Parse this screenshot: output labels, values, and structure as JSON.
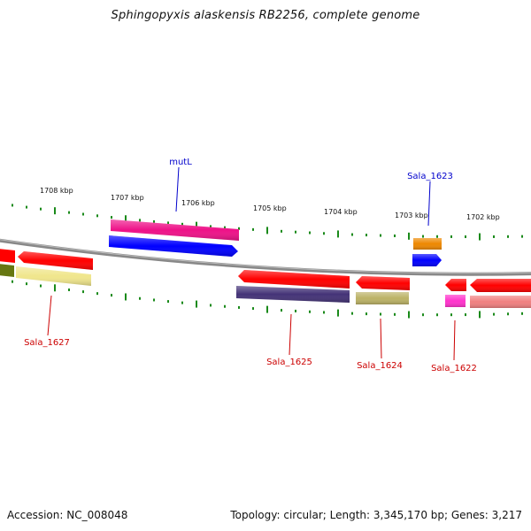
{
  "title": "Sphingopyxis alaskensis RB2256, complete genome",
  "footer": {
    "accession": "Accession: NC_008048",
    "stats": "Topology: circular; Length: 3,345,170 bp; Genes: 3,217"
  },
  "ruler": {
    "labels": [
      "1708 kbp",
      "1707 kbp",
      "1706 kbp",
      "1705 kbp",
      "1704 kbp",
      "1703 kbp",
      "1702 kbp"
    ]
  },
  "genes": {
    "mutL": "mutL",
    "sala_1623": "Sala_1623",
    "sala_1627": "Sala_1627",
    "sala_1625": "Sala_1625",
    "sala_1624": "Sala_1624",
    "sala_1622": "Sala_1622"
  },
  "colors": {
    "backbone": "#888888",
    "ticks": "#1a8a1a",
    "forward_label": "#0000cc",
    "reverse_label": "#cc0000",
    "gene_red": "#ff0000",
    "gene_blue": "#0000ff",
    "gene_pink": "#ee1188",
    "gene_orange": "#ee8800",
    "gene_olive": "#667711",
    "gene_yellow": "#f0e68c",
    "gene_navy": "#443377",
    "gene_khaki": "#bbb266",
    "gene_magenta": "#ff33cc",
    "gene_salmon": "#f08080"
  }
}
